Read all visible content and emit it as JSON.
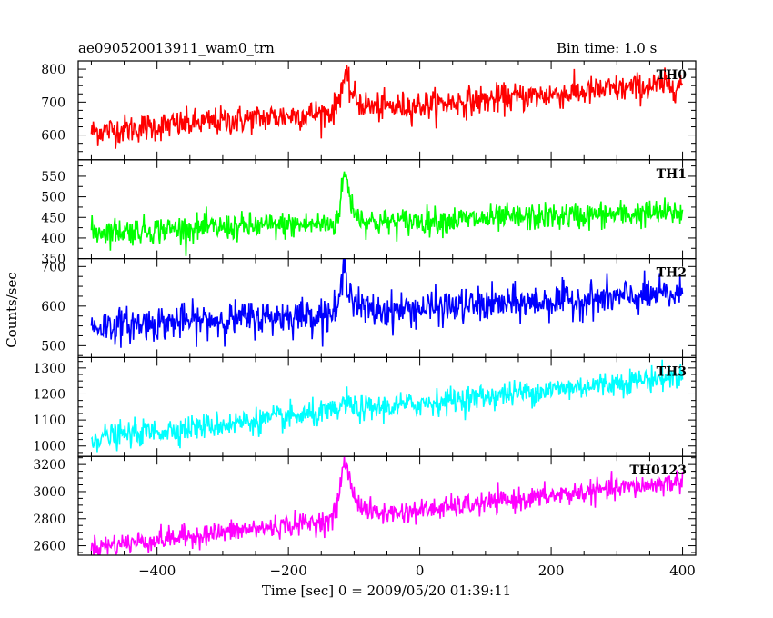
{
  "header": {
    "title": "ae090520013911_wam0_trn",
    "bin_time": "Bin time: 1.0 s"
  },
  "chart_data": {
    "type": "line",
    "title": "ae090520013911_wam0_trn",
    "xlabel": "Time [sec] 0 = 2009/05/20 01:39:11",
    "ylabel": "Counts/sec",
    "xlim": [
      -520,
      420
    ],
    "x_ticks": [
      -400,
      -200,
      0,
      200,
      400
    ],
    "x_start": -500,
    "x_end": 400,
    "bin_time_s": 1.0,
    "grid": false,
    "panels": [
      {
        "name": "TH0",
        "color": "#ff0000",
        "ylim": [
          525,
          825
        ],
        "y_ticks": [
          600,
          700,
          800
        ],
        "base_start": 610,
        "base_end": 755,
        "noise_amplitude": 40,
        "burst": {
          "peak_time": -113,
          "peak_value": 775,
          "rise_s": 8,
          "decay_s": 15
        }
      },
      {
        "name": "TH1",
        "color": "#00ff00",
        "ylim": [
          350,
          590
        ],
        "y_ticks": [
          350,
          400,
          450,
          500,
          550
        ],
        "base_start": 415,
        "base_end": 462,
        "noise_amplitude": 30,
        "burst": {
          "peak_time": -113,
          "peak_value": 560,
          "rise_s": 6,
          "decay_s": 10
        }
      },
      {
        "name": "TH2",
        "color": "#0000ff",
        "ylim": [
          470,
          720
        ],
        "y_ticks": [
          500,
          600,
          700
        ],
        "base_start": 548,
        "base_end": 630,
        "noise_amplitude": 40,
        "burst": {
          "peak_time": -113,
          "peak_value": 700,
          "rise_s": 6,
          "decay_s": 10
        }
      },
      {
        "name": "TH3",
        "color": "#00ffff",
        "ylim": [
          960,
          1340
        ],
        "y_ticks": [
          1000,
          1100,
          1200,
          1300
        ],
        "base_start": 1030,
        "base_end": 1270,
        "noise_amplitude": 45,
        "burst": {
          "peak_time": -113,
          "peak_value": 1170,
          "rise_s": 6,
          "decay_s": 10
        }
      },
      {
        "name": "TH0123",
        "color": "#ff00ff",
        "ylim": [
          2530,
          3260
        ],
        "y_ticks": [
          2600,
          2800,
          3000,
          3200
        ],
        "base_start": 2590,
        "base_end": 3075,
        "noise_amplitude": 75,
        "burst": {
          "peak_time": -113,
          "peak_value": 3220,
          "rise_s": 8,
          "decay_s": 15
        }
      }
    ]
  }
}
